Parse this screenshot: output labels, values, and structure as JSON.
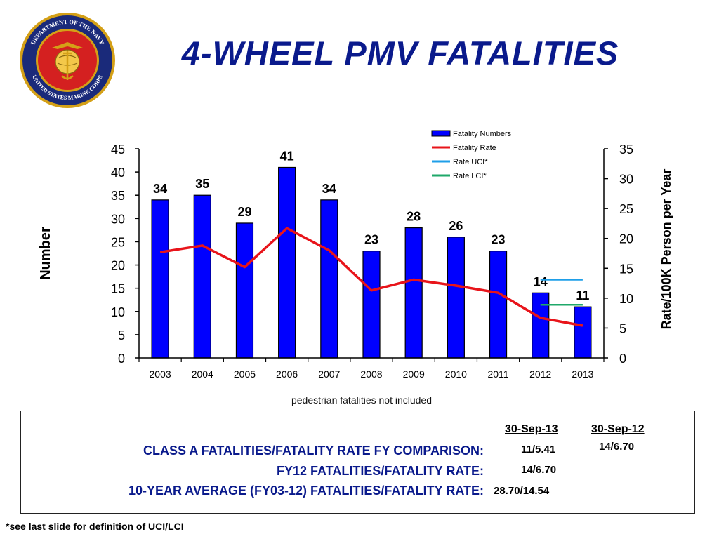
{
  "slide": {
    "title": "4-WHEEL PMV  FATALITIES",
    "seal": {
      "ring_text_top": "DEPARTMENT OF THE NAVY",
      "ring_text_bottom": "UNITED STATES MARINE CORPS",
      "colors": {
        "ring": "#1a2a7a",
        "center": "#d42020",
        "emblem": "#d4a017"
      }
    },
    "note": "pedestrian fatalities not included",
    "footnote": "*see last slide for definition of UCI/LCI"
  },
  "chart_data": {
    "type": "bar",
    "categories": [
      "2003",
      "2004",
      "2005",
      "2006",
      "2007",
      "2008",
      "2009",
      "2010",
      "2011",
      "2012",
      "2013"
    ],
    "series": [
      {
        "name": "Fatality Numbers",
        "type": "bar",
        "axis": "left",
        "color": "#0000ff",
        "values": [
          34,
          35,
          29,
          41,
          34,
          23,
          28,
          26,
          23,
          14,
          11
        ],
        "data_labels": [
          "34",
          "35",
          "29",
          "41",
          "34",
          "23",
          "28",
          "26",
          "23",
          "14",
          "11"
        ]
      },
      {
        "name": "Fatality Rate",
        "type": "line",
        "axis": "right",
        "color": "#e8141a",
        "values": [
          17.7,
          18.8,
          15.2,
          21.7,
          18.0,
          11.3,
          13.1,
          12.1,
          10.9,
          6.7,
          5.4
        ]
      },
      {
        "name": "Rate UCI*",
        "type": "segment",
        "axis": "right",
        "color": "#1f9fe8",
        "x_range": [
          "2012",
          "2013"
        ],
        "value": 13.1
      },
      {
        "name": "Rate LCI*",
        "type": "segment",
        "axis": "right",
        "color": "#1fa86a",
        "x_range": [
          "2012",
          "2013"
        ],
        "value": 8.9
      }
    ],
    "left_axis": {
      "label": "Number",
      "range": [
        0,
        45
      ],
      "ticks": [
        "0",
        "5",
        "10",
        "15",
        "20",
        "25",
        "30",
        "35",
        "40",
        "45"
      ]
    },
    "right_axis": {
      "label": "Rate/100K Person per Year",
      "range": [
        0,
        35
      ],
      "ticks": [
        "0",
        "5",
        "10",
        "15",
        "20",
        "25",
        "30",
        "35"
      ]
    },
    "legend_position": "top-right",
    "grid": false
  },
  "comparison": {
    "headers": [
      "30-Sep-13",
      "30-Sep-12"
    ],
    "rows": [
      {
        "label": "CLASS A FATALITIES/FATALITY RATE FY COMPARISON:",
        "values": [
          "11/5.41",
          "14/6.70"
        ]
      },
      {
        "label": "FY12 FATALITIES/FATALITY RATE:",
        "values": [
          "14/6.70"
        ]
      },
      {
        "label": "10-YEAR AVERAGE (FY03-12) FATALITIES/FATALITY RATE:",
        "values": [
          "28.70/14.54"
        ]
      }
    ]
  }
}
